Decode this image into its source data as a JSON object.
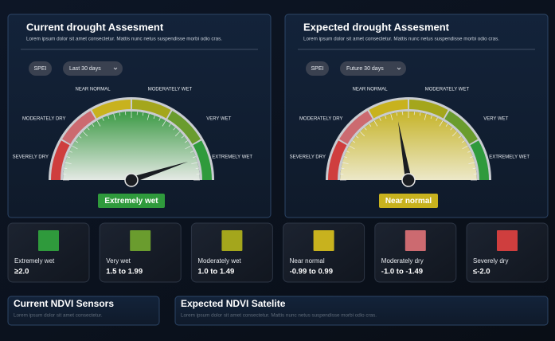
{
  "panels": [
    {
      "title": "Current drought Assesment",
      "subtitle": "Lorem ipsum dolor sit amet consectetur. Mattis nunc netus suspendisse morbi odio cras.",
      "index_label": "SPEI",
      "period": "Last 30 days",
      "zones": [
        "SEVERELY DRY",
        "MODERATELY DRY",
        "NEAR NORMAL",
        "MODERATELY WET",
        "VERY WET",
        "EXTREMELY WET"
      ],
      "status": "Extremely wet",
      "status_color": "#2f9a3c"
    },
    {
      "title": "Expected drought Assesment",
      "subtitle": "Lorem ipsum dolor sit amet consectetur. Mattis nunc netus suspendisse morbi odio cras.",
      "index_label": "SPEI",
      "period": "Future 30 days",
      "zones": [
        "SEVERELY DRY",
        "MODERATELY DRY",
        "NEAR NORMAL",
        "MODERATELY WET",
        "VERY WET",
        "EXTREMELY WET"
      ],
      "status": "Near normal",
      "status_color": "#c8b21e"
    }
  ],
  "legend": [
    {
      "label": "Extremely wet",
      "range": "≥2.0",
      "color": "#2f9a3c"
    },
    {
      "label": "Very wet",
      "range": "1.5 to 1.99",
      "color": "#6a9c2e"
    },
    {
      "label": "Moderately wet",
      "range": "1.0 to 1.49",
      "color": "#a4a61c"
    },
    {
      "label": "Near normal",
      "range": "-0.99 to 0.99",
      "color": "#c8b21e"
    },
    {
      "label": "Moderately dry",
      "range": "-1.0 to -1.49",
      "color": "#cc6a70"
    },
    {
      "label": "Severely dry",
      "range": "≤-2.0",
      "color": "#cf3e3e"
    }
  ],
  "bottom_panels": [
    {
      "title": "Current NDVI Sensors",
      "subtitle": "Lorem ipsum dolor sit amet consectetur."
    },
    {
      "title": "Expected NDVI Satelite",
      "subtitle": "Lorem ipsum dolor sit amet consectetur. Mattis nunc netus suspendisse morbi odio cras."
    }
  ]
}
